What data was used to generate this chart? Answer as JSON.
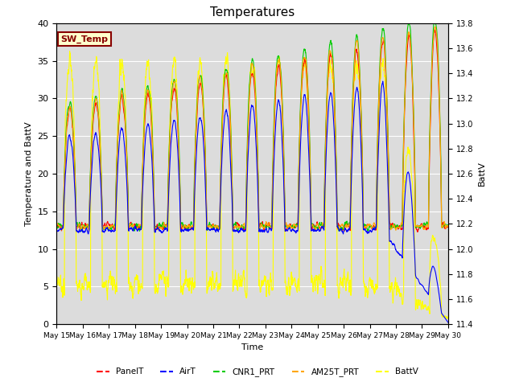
{
  "title": "Temperatures",
  "xlabel": "Time",
  "ylabel_left": "Temperature and BattV",
  "ylabel_right": "BattV",
  "ylim_left": [
    0,
    40
  ],
  "ylim_right": [
    11.4,
    13.8
  ],
  "x_tick_labels": [
    "May 15",
    "May 16",
    "May 17",
    "May 18",
    "May 19",
    "May 20",
    "May 21",
    "May 22",
    "May 23",
    "May 24",
    "May 25",
    "May 26",
    "May 27",
    "May 28",
    "May 29",
    "May 30"
  ],
  "legend_entries": [
    "PanelT",
    "AirT",
    "CNR1_PRT",
    "AM25T_PRT",
    "BattV"
  ],
  "line_colors": [
    "red",
    "blue",
    "#00cc00",
    "orange",
    "yellow"
  ],
  "background_color": "#dcdcdc",
  "grid_color": "white",
  "sw_temp_facecolor": "#ffffcc",
  "sw_temp_edgecolor": "#880000",
  "sw_temp_textcolor": "#880000"
}
